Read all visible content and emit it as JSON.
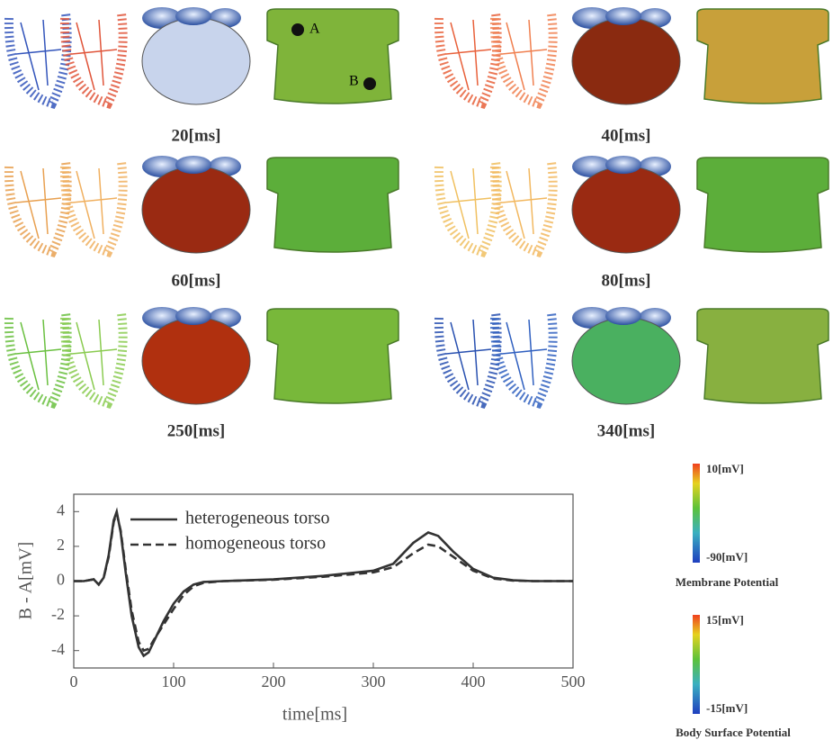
{
  "panels": [
    {
      "label": "20[ms]"
    },
    {
      "label": "40[ms]"
    },
    {
      "label": "60[ms]"
    },
    {
      "label": "80[ms]"
    },
    {
      "label": "250[ms]"
    },
    {
      "label": "340[ms]"
    }
  ],
  "markers": {
    "a": "A",
    "b": "B"
  },
  "colorbars": [
    {
      "max_label": "10[mV]",
      "min_label": "-90[mV]",
      "title": "Membrane Potential"
    },
    {
      "max_label": "15[mV]",
      "min_label": "-15[mV]",
      "title": "Body Surface Potential"
    }
  ],
  "chart_data": {
    "type": "line",
    "xlabel": "time[ms]",
    "ylabel": "B - A[mV]",
    "x": [
      0,
      10,
      20,
      25,
      30,
      35,
      40,
      43,
      47,
      52,
      58,
      65,
      70,
      75,
      80,
      90,
      100,
      110,
      120,
      130,
      150,
      200,
      250,
      300,
      320,
      340,
      355,
      365,
      380,
      400,
      420,
      440,
      460,
      500
    ],
    "series": [
      {
        "name": "heterogeneous torso",
        "color": "#333333",
        "dash": "solid",
        "values": [
          0,
          0,
          0.1,
          -0.2,
          0.2,
          1.5,
          3.5,
          4.0,
          2.8,
          0.5,
          -2,
          -3.8,
          -4.3,
          -4.1,
          -3.5,
          -2.3,
          -1.3,
          -0.6,
          -0.2,
          -0.05,
          0,
          0.1,
          0.3,
          0.6,
          1.0,
          2.2,
          2.8,
          2.6,
          1.7,
          0.7,
          0.2,
          0.05,
          0,
          0
        ]
      },
      {
        "name": "homogeneous torso",
        "color": "#333333",
        "dash": "dashed",
        "values": [
          0,
          0,
          0.1,
          -0.2,
          0.2,
          1.4,
          3.4,
          3.9,
          2.9,
          0.7,
          -1.7,
          -3.5,
          -4.0,
          -3.9,
          -3.4,
          -2.5,
          -1.6,
          -0.8,
          -0.3,
          -0.1,
          0,
          0.08,
          0.25,
          0.5,
          0.8,
          1.6,
          2.1,
          2.0,
          1.4,
          0.6,
          0.15,
          0.03,
          0,
          0
        ]
      }
    ],
    "xlim": [
      0,
      500
    ],
    "ylim": [
      -5,
      5
    ],
    "xticks": [
      0,
      100,
      200,
      300,
      400,
      500
    ],
    "yticks": [
      -4,
      -2,
      0,
      2,
      4
    ]
  }
}
